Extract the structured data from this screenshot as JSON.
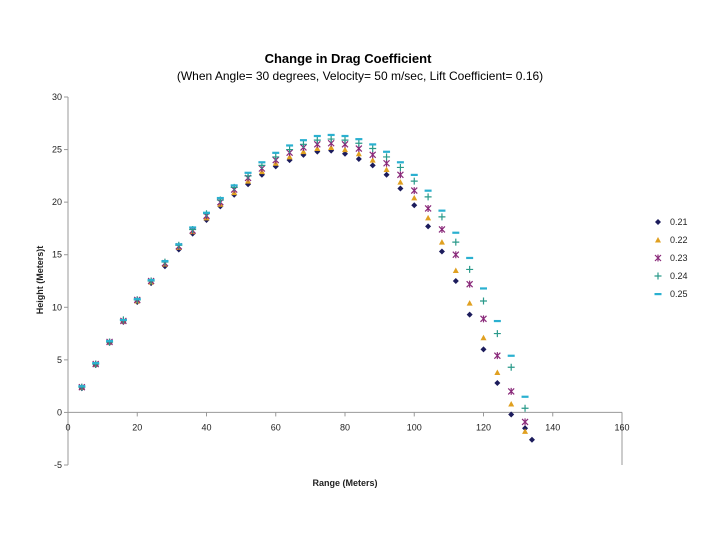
{
  "chart_data": {
    "type": "scatter",
    "title": "Change in Drag Coefficient",
    "subtitle": "(When Angle= 30 degrees, Velocity= 50 m/sec, Lift Coefficient= 0.16)",
    "xlabel": "Range (Meters)",
    "ylabel": "Height (Meters)t",
    "xlim": [
      0,
      160
    ],
    "ylim": [
      -5,
      30
    ],
    "xticks": [
      0,
      20,
      40,
      60,
      80,
      100,
      120,
      140,
      160
    ],
    "yticks": [
      -5,
      0,
      5,
      10,
      15,
      20,
      25,
      30
    ],
    "grid": false,
    "legend_position": "right",
    "series": [
      {
        "name": "0.21",
        "marker": "diamond",
        "color": "#1c1c5c",
        "x": [
          4,
          8,
          12,
          16,
          20,
          24,
          28,
          32,
          36,
          40,
          44,
          48,
          52,
          56,
          60,
          64,
          68,
          72,
          76,
          80,
          84,
          88,
          92,
          96,
          100,
          104,
          108,
          112,
          116,
          120,
          124,
          128,
          132,
          134
        ],
        "y": [
          2.3,
          4.5,
          6.6,
          8.6,
          10.5,
          12.3,
          13.9,
          15.5,
          17,
          18.3,
          19.6,
          20.7,
          21.7,
          22.6,
          23.4,
          24,
          24.5,
          24.8,
          24.9,
          24.6,
          24.1,
          23.5,
          22.6,
          21.3,
          19.7,
          17.7,
          15.3,
          12.5,
          9.3,
          6,
          2.8,
          -0.2,
          -1.5,
          -2.6
        ]
      },
      {
        "name": "0.22",
        "marker": "triangle",
        "color": "#e0a020",
        "x": [
          4,
          8,
          12,
          16,
          20,
          24,
          28,
          32,
          36,
          40,
          44,
          48,
          52,
          56,
          60,
          64,
          68,
          72,
          76,
          80,
          84,
          88,
          92,
          96,
          100,
          104,
          108,
          112,
          116,
          120,
          124,
          128,
          132
        ],
        "y": [
          2.4,
          4.6,
          6.7,
          8.7,
          10.6,
          12.4,
          14.1,
          15.7,
          17.2,
          18.5,
          19.8,
          20.9,
          22,
          22.9,
          23.7,
          24.3,
          24.8,
          25.1,
          25.2,
          25,
          24.6,
          24,
          23.1,
          21.9,
          20.4,
          18.5,
          16.2,
          13.5,
          10.4,
          7.1,
          3.8,
          0.8,
          -1.8
        ]
      },
      {
        "name": "0.23",
        "marker": "star",
        "color": "#8a2a7a",
        "x": [
          4,
          8,
          12,
          16,
          20,
          24,
          28,
          32,
          36,
          40,
          44,
          48,
          52,
          56,
          60,
          64,
          68,
          72,
          76,
          80,
          84,
          88,
          92,
          96,
          100,
          104,
          108,
          112,
          116,
          120,
          124,
          128,
          132
        ],
        "y": [
          2.4,
          4.6,
          6.7,
          8.7,
          10.7,
          12.5,
          14.2,
          15.8,
          17.3,
          18.7,
          20,
          21.2,
          22.3,
          23.2,
          24,
          24.7,
          25.2,
          25.5,
          25.6,
          25.5,
          25.1,
          24.5,
          23.7,
          22.6,
          21.1,
          19.4,
          17.4,
          15,
          12.2,
          8.9,
          5.4,
          2,
          -0.9
        ]
      },
      {
        "name": "0.24",
        "marker": "plus",
        "color": "#2a9a8a",
        "x": [
          4,
          8,
          12,
          16,
          20,
          24,
          28,
          32,
          36,
          40,
          44,
          48,
          52,
          56,
          60,
          64,
          68,
          72,
          76,
          80,
          84,
          88,
          92,
          96,
          100,
          104,
          108,
          112,
          116,
          120,
          124,
          128,
          132
        ],
        "y": [
          2.4,
          4.6,
          6.7,
          8.8,
          10.7,
          12.5,
          14.3,
          15.9,
          17.4,
          18.9,
          20.2,
          21.4,
          22.5,
          23.5,
          24.3,
          25,
          25.5,
          25.9,
          26,
          25.9,
          25.6,
          25.1,
          24.3,
          23.3,
          22,
          20.5,
          18.6,
          16.2,
          13.6,
          10.6,
          7.5,
          4.3,
          0.4
        ]
      },
      {
        "name": "0.25",
        "marker": "dash",
        "color": "#2ab0d0",
        "x": [
          4,
          8,
          12,
          16,
          20,
          24,
          28,
          32,
          36,
          40,
          44,
          48,
          52,
          56,
          60,
          64,
          68,
          72,
          76,
          80,
          84,
          88,
          92,
          96,
          100,
          104,
          108,
          112,
          116,
          120,
          124,
          128,
          132
        ],
        "y": [
          2.5,
          4.7,
          6.8,
          8.8,
          10.8,
          12.6,
          14.4,
          16,
          17.6,
          19,
          20.4,
          21.6,
          22.8,
          23.8,
          24.7,
          25.4,
          25.9,
          26.3,
          26.4,
          26.3,
          26,
          25.5,
          24.8,
          23.8,
          22.6,
          21.1,
          19.2,
          17.1,
          14.7,
          11.8,
          8.7,
          5.4,
          1.5
        ]
      }
    ]
  }
}
